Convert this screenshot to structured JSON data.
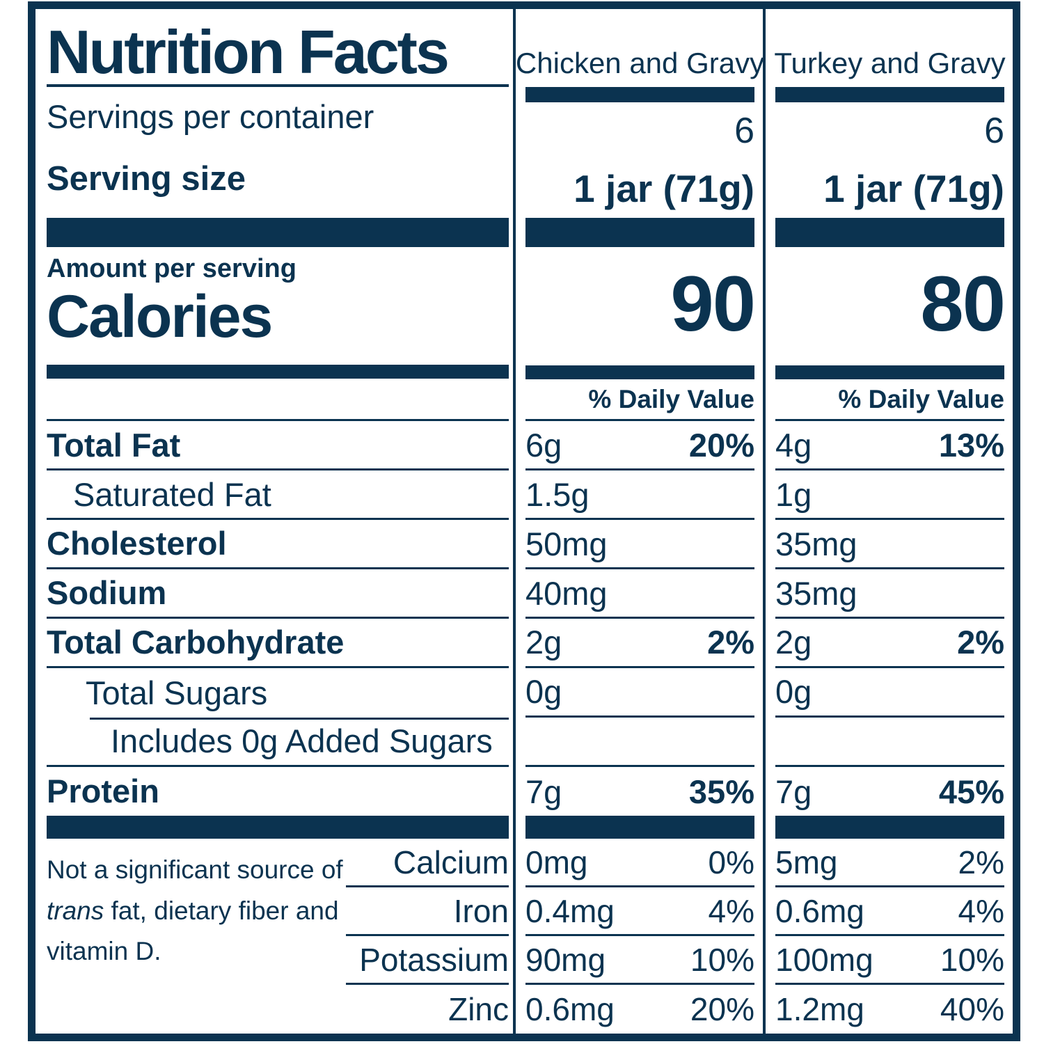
{
  "colors": {
    "navy": "#0b3350",
    "background": "#ffffff"
  },
  "header": {
    "title": "Nutrition Facts",
    "servings_label": "Servings per container",
    "serving_size_label": "Serving size",
    "amount_label": "Amount per serving",
    "calories_label": "Calories",
    "daily_value_label": "% Daily Value"
  },
  "columns": [
    {
      "name": "Chicken and Gravy",
      "servings": "6",
      "serving_size": "1 jar (71g)",
      "calories": "90"
    },
    {
      "name": "Turkey and Gravy",
      "servings": "6",
      "serving_size": "1 jar (71g)",
      "calories": "80"
    }
  ],
  "nutrients": [
    {
      "label": "Total Fat",
      "cols": [
        {
          "amount": "6g",
          "dv": "20%"
        },
        {
          "amount": "4g",
          "dv": "13%"
        }
      ]
    },
    {
      "label": "Saturated Fat",
      "cols": [
        {
          "amount": "1.5g",
          "dv": ""
        },
        {
          "amount": "1g",
          "dv": ""
        }
      ]
    },
    {
      "label": "Cholesterol",
      "cols": [
        {
          "amount": "50mg",
          "dv": ""
        },
        {
          "amount": "35mg",
          "dv": ""
        }
      ]
    },
    {
      "label": "Sodium",
      "cols": [
        {
          "amount": "40mg",
          "dv": ""
        },
        {
          "amount": "35mg",
          "dv": ""
        }
      ]
    },
    {
      "label": "Total Carbohydrate",
      "cols": [
        {
          "amount": "2g",
          "dv": "2%"
        },
        {
          "amount": "2g",
          "dv": "2%"
        }
      ]
    },
    {
      "label": "Total Sugars",
      "cols": [
        {
          "amount": "0g",
          "dv": ""
        },
        {
          "amount": "0g",
          "dv": ""
        }
      ]
    },
    {
      "label": "Includes 0g Added Sugars",
      "cols": [
        {
          "amount": "",
          "dv": ""
        },
        {
          "amount": "",
          "dv": ""
        }
      ]
    },
    {
      "label": "Protein",
      "cols": [
        {
          "amount": "7g",
          "dv": "35%"
        },
        {
          "amount": "7g",
          "dv": "45%"
        }
      ]
    }
  ],
  "footnote": {
    "prefix": "Not a significant source of ",
    "italic": "trans",
    "suffix": " fat, dietary fiber and vitamin D."
  },
  "minerals": [
    {
      "label": "Calcium",
      "cols": [
        {
          "amount": "0mg",
          "dv": "0%"
        },
        {
          "amount": "5mg",
          "dv": "2%"
        }
      ]
    },
    {
      "label": "Iron",
      "cols": [
        {
          "amount": "0.4mg",
          "dv": "4%"
        },
        {
          "amount": "0.6mg",
          "dv": "4%"
        }
      ]
    },
    {
      "label": "Potassium",
      "cols": [
        {
          "amount": "90mg",
          "dv": "10%"
        },
        {
          "amount": "100mg",
          "dv": "10%"
        }
      ]
    },
    {
      "label": "Zinc",
      "cols": [
        {
          "amount": "0.6mg",
          "dv": "20%"
        },
        {
          "amount": "1.2mg",
          "dv": "40%"
        }
      ]
    }
  ]
}
